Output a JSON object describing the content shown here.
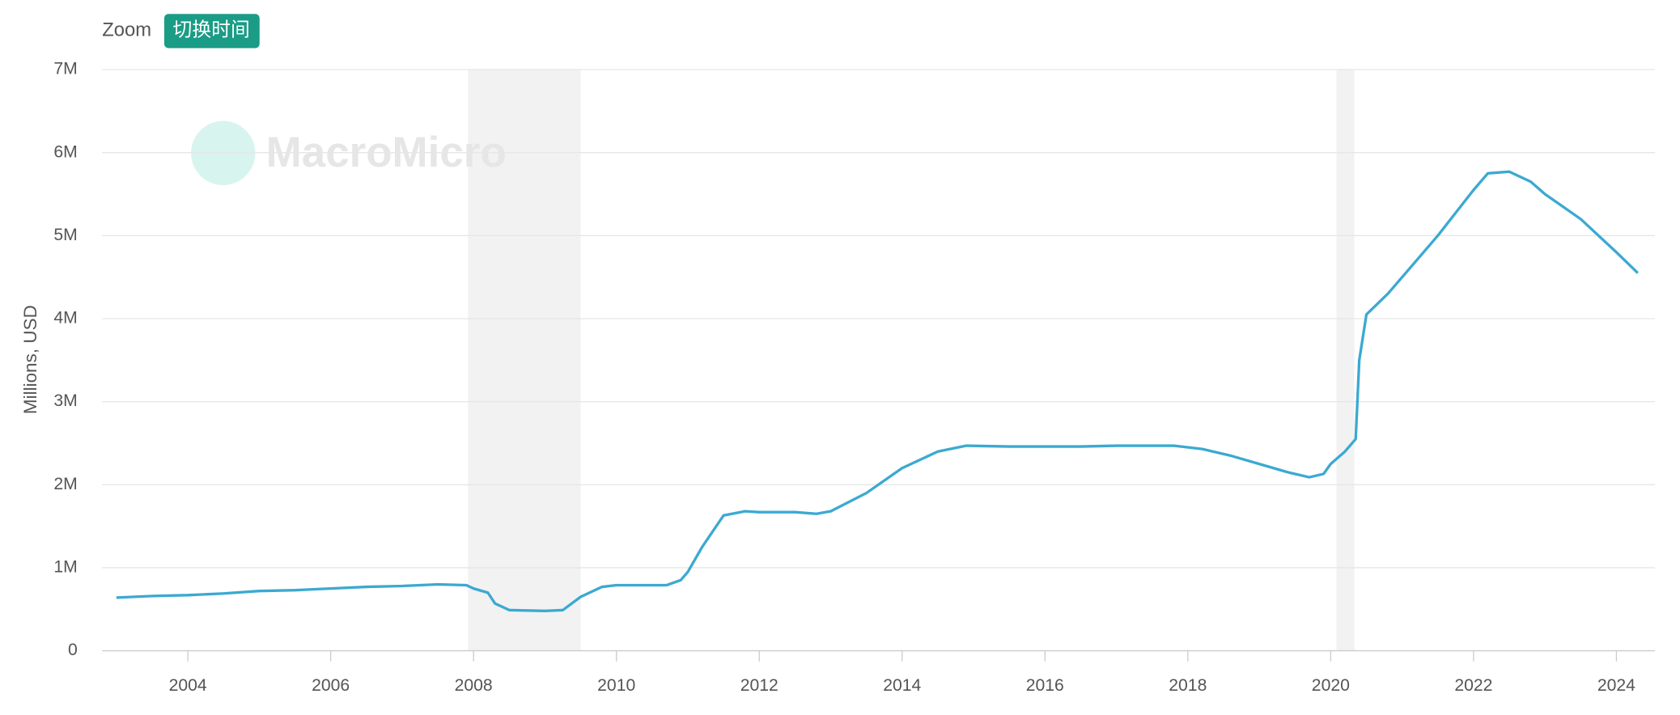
{
  "zoom_label": "Zoom",
  "zoom_button": "切换时间",
  "chart_data": {
    "type": "line",
    "watermark": "MacroMicro",
    "y_label": "Millions, USD",
    "xlim": [
      2002.8,
      2024.54
    ],
    "xticks": [
      2004,
      2006,
      2008,
      2010,
      2012,
      2014,
      2016,
      2018,
      2020,
      2022,
      2024
    ],
    "ylim": [
      0,
      7
    ],
    "yticks": [
      0,
      {
        "value": 1,
        "label": "1M"
      },
      {
        "value": 2,
        "label": "2M"
      },
      {
        "value": 3,
        "label": "3M"
      },
      {
        "value": 4,
        "label": "4M"
      },
      {
        "value": 5,
        "label": "5M"
      },
      {
        "value": 6,
        "label": "6M"
      },
      {
        "value": 7,
        "label": "7M"
      }
    ],
    "grid": true,
    "shaded_ranges": [
      [
        2007.92,
        2009.5
      ],
      [
        2020.08,
        2020.33
      ]
    ],
    "x": [
      2003.0,
      2003.5,
      2004.0,
      2004.5,
      2005.0,
      2005.5,
      2006.0,
      2006.5,
      2007.0,
      2007.5,
      2007.9,
      2008.0,
      2008.2,
      2008.3,
      2008.5,
      2009.0,
      2009.25,
      2009.5,
      2009.8,
      2010.0,
      2010.7,
      2010.9,
      2011.0,
      2011.2,
      2011.5,
      2011.8,
      2012.0,
      2012.5,
      2012.8,
      2013.0,
      2013.5,
      2014.0,
      2014.5,
      2014.9,
      2015.5,
      2016.5,
      2017.0,
      2017.8,
      2018.2,
      2018.6,
      2019.0,
      2019.4,
      2019.7,
      2019.9,
      2020.0,
      2020.2,
      2020.35,
      2020.4,
      2020.5,
      2020.8,
      2021.0,
      2021.5,
      2022.0,
      2022.2,
      2022.5,
      2022.8,
      2023.0,
      2023.5,
      2024.0,
      2024.3
    ],
    "series": [
      {
        "color": "#3ba9d1",
        "values": [
          0.64,
          0.66,
          0.67,
          0.69,
          0.72,
          0.73,
          0.75,
          0.77,
          0.78,
          0.8,
          0.79,
          0.75,
          0.7,
          0.57,
          0.49,
          0.48,
          0.49,
          0.65,
          0.77,
          0.79,
          0.79,
          0.85,
          0.95,
          1.25,
          1.63,
          1.68,
          1.67,
          1.67,
          1.65,
          1.68,
          1.9,
          2.2,
          2.4,
          2.47,
          2.46,
          2.46,
          2.47,
          2.47,
          2.43,
          2.35,
          2.25,
          2.15,
          2.09,
          2.13,
          2.25,
          2.4,
          2.55,
          3.5,
          4.05,
          4.3,
          4.5,
          5.0,
          5.55,
          5.75,
          5.77,
          5.65,
          5.5,
          5.2,
          4.8,
          4.55
        ]
      }
    ]
  }
}
